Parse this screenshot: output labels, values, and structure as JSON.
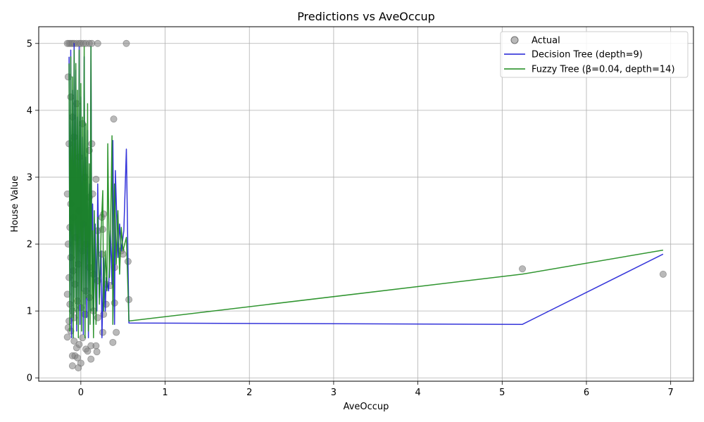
{
  "chart_data": {
    "type": "line",
    "title": "Predictions vs AveOccup",
    "xlabel": "AveOccup",
    "ylabel": "House Value",
    "xlim": [
      -0.5,
      7.27
    ],
    "ylim": [
      -0.05,
      5.25
    ],
    "xticks": [
      0,
      1,
      2,
      3,
      4,
      5,
      6,
      7
    ],
    "yticks": [
      0,
      1,
      2,
      3,
      4,
      5
    ],
    "grid": true,
    "legend_position": "top-right",
    "colors": {
      "actual": "#808080",
      "tree": "#1f1fd6",
      "fuzzy": "#1a8a1a",
      "grid": "#b0b0b0"
    },
    "series": [
      {
        "name": "Actual",
        "kind": "scatter",
        "points": [
          [
            -0.16,
            5.0
          ],
          [
            -0.14,
            5.0
          ],
          [
            -0.12,
            5.0
          ],
          [
            -0.1,
            5.0
          ],
          [
            -0.08,
            5.0
          ],
          [
            -0.05,
            5.0
          ],
          [
            -0.02,
            5.0
          ],
          [
            0.0,
            5.0
          ],
          [
            0.03,
            5.0
          ],
          [
            0.06,
            5.0
          ],
          [
            0.1,
            5.0
          ],
          [
            0.13,
            5.0
          ],
          [
            0.2,
            5.0
          ],
          [
            0.54,
            5.0
          ],
          [
            -0.15,
            4.5
          ],
          [
            -0.12,
            4.2
          ],
          [
            -0.1,
            3.9
          ],
          [
            -0.14,
            3.5
          ],
          [
            -0.08,
            3.6
          ],
          [
            -0.05,
            4.1
          ],
          [
            -0.02,
            3.3
          ],
          [
            0.02,
            3.8
          ],
          [
            0.05,
            3.0
          ],
          [
            0.1,
            3.4
          ],
          [
            0.13,
            3.5
          ],
          [
            0.39,
            3.87
          ],
          [
            -0.16,
            2.75
          ],
          [
            -0.12,
            2.6
          ],
          [
            -0.09,
            2.4
          ],
          [
            -0.13,
            2.25
          ],
          [
            -0.06,
            2.1
          ],
          [
            -0.02,
            2.5
          ],
          [
            0.03,
            2.3
          ],
          [
            0.06,
            2.0
          ],
          [
            0.1,
            2.7
          ],
          [
            0.14,
            2.75
          ],
          [
            0.18,
            2.97
          ],
          [
            0.25,
            2.4
          ],
          [
            0.27,
            2.45
          ],
          [
            0.2,
            2.2
          ],
          [
            0.26,
            2.22
          ],
          [
            -0.15,
            2.0
          ],
          [
            -0.12,
            1.8
          ],
          [
            -0.09,
            1.6
          ],
          [
            -0.14,
            1.5
          ],
          [
            -0.07,
            1.4
          ],
          [
            -0.03,
            1.7
          ],
          [
            0.02,
            1.9
          ],
          [
            0.06,
            1.3
          ],
          [
            0.1,
            1.65
          ],
          [
            0.15,
            1.55
          ],
          [
            0.2,
            1.45
          ],
          [
            0.25,
            1.85
          ],
          [
            0.3,
            1.4
          ],
          [
            0.35,
            1.38
          ],
          [
            0.4,
            1.65
          ],
          [
            0.48,
            1.9
          ],
          [
            0.5,
            1.85
          ],
          [
            0.56,
            1.74
          ],
          [
            -0.16,
            1.25
          ],
          [
            -0.13,
            1.1
          ],
          [
            -0.1,
            1.0
          ],
          [
            -0.14,
            0.85
          ],
          [
            -0.08,
            0.9
          ],
          [
            -0.04,
            1.15
          ],
          [
            0.0,
            1.05
          ],
          [
            0.05,
            0.95
          ],
          [
            0.1,
            1.2
          ],
          [
            0.15,
            1.0
          ],
          [
            0.2,
            0.9
          ],
          [
            0.27,
            0.95
          ],
          [
            0.3,
            1.1
          ],
          [
            0.4,
            1.12
          ],
          [
            0.57,
            1.17
          ],
          [
            -0.15,
            0.75
          ],
          [
            -0.12,
            0.7
          ],
          [
            -0.16,
            0.61
          ],
          [
            -0.08,
            0.55
          ],
          [
            -0.05,
            0.45
          ],
          [
            -0.02,
            0.5
          ],
          [
            0.02,
            0.6
          ],
          [
            0.06,
            0.43
          ],
          [
            0.08,
            0.4
          ],
          [
            0.12,
            0.48
          ],
          [
            0.18,
            0.48
          ],
          [
            0.19,
            0.39
          ],
          [
            0.26,
            0.68
          ],
          [
            0.42,
            0.68
          ],
          [
            0.38,
            0.53
          ],
          [
            -0.1,
            0.33
          ],
          [
            -0.07,
            0.33
          ],
          [
            -0.04,
            0.3
          ],
          [
            0.0,
            0.22
          ],
          [
            0.12,
            0.28
          ],
          [
            -0.1,
            0.18
          ],
          [
            -0.03,
            0.15
          ],
          [
            5.24,
            1.63
          ],
          [
            6.91,
            1.55
          ]
        ]
      },
      {
        "name": "Decision Tree (depth=9)",
        "kind": "line",
        "points": [
          [
            -0.14,
            4.8
          ],
          [
            -0.13,
            0.8
          ],
          [
            -0.12,
            4.9
          ],
          [
            -0.11,
            0.6
          ],
          [
            -0.1,
            4.3
          ],
          [
            -0.09,
            0.9
          ],
          [
            -0.08,
            5.0
          ],
          [
            -0.07,
            1.2
          ],
          [
            -0.06,
            4.6
          ],
          [
            -0.05,
            0.7
          ],
          [
            -0.04,
            3.9
          ],
          [
            -0.03,
            1.0
          ],
          [
            -0.02,
            4.95
          ],
          [
            -0.01,
            0.8
          ],
          [
            0.0,
            4.2
          ],
          [
            0.01,
            1.3
          ],
          [
            0.02,
            3.6
          ],
          [
            0.03,
            0.65
          ],
          [
            0.04,
            4.8
          ],
          [
            0.05,
            1.1
          ],
          [
            0.06,
            3.3
          ],
          [
            0.07,
            0.9
          ],
          [
            0.08,
            3.7
          ],
          [
            0.09,
            0.6
          ],
          [
            0.1,
            2.9
          ],
          [
            0.11,
            1.0
          ],
          [
            0.12,
            4.95
          ],
          [
            0.13,
            1.5
          ],
          [
            0.14,
            2.6
          ],
          [
            0.15,
            0.8
          ],
          [
            0.17,
            2.3
          ],
          [
            0.19,
            1.0
          ],
          [
            0.2,
            2.9
          ],
          [
            0.22,
            1.2
          ],
          [
            0.24,
            1.9
          ],
          [
            0.25,
            0.6
          ],
          [
            0.27,
            1.8
          ],
          [
            0.29,
            1.0
          ],
          [
            0.3,
            1.5
          ],
          [
            0.33,
            1.3
          ],
          [
            0.35,
            2.2
          ],
          [
            0.37,
            1.4
          ],
          [
            0.38,
            3.55
          ],
          [
            0.4,
            0.8
          ],
          [
            0.41,
            3.1
          ],
          [
            0.44,
            1.8
          ],
          [
            0.46,
            2.3
          ],
          [
            0.48,
            1.9
          ],
          [
            0.51,
            2.2
          ],
          [
            0.54,
            3.42
          ],
          [
            0.57,
            0.82
          ],
          [
            5.24,
            0.8
          ],
          [
            6.91,
            1.85
          ]
        ]
      },
      {
        "name": "Fuzzy Tree (β=0.04, depth=14)",
        "kind": "line",
        "points": [
          [
            -0.14,
            4.7
          ],
          [
            -0.13,
            0.7
          ],
          [
            -0.12,
            4.8
          ],
          [
            -0.11,
            0.9
          ],
          [
            -0.1,
            4.5
          ],
          [
            -0.09,
            0.6
          ],
          [
            -0.08,
            4.9
          ],
          [
            -0.07,
            1.0
          ],
          [
            -0.06,
            4.7
          ],
          [
            -0.05,
            0.8
          ],
          [
            -0.04,
            4.3
          ],
          [
            -0.03,
            0.6
          ],
          [
            -0.02,
            4.9
          ],
          [
            -0.01,
            1.1
          ],
          [
            0.0,
            4.4
          ],
          [
            0.01,
            0.7
          ],
          [
            0.02,
            3.9
          ],
          [
            0.03,
            1.0
          ],
          [
            0.04,
            4.95
          ],
          [
            0.05,
            0.6
          ],
          [
            0.06,
            3.8
          ],
          [
            0.07,
            1.2
          ],
          [
            0.08,
            4.1
          ],
          [
            0.09,
            0.7
          ],
          [
            0.1,
            3.2
          ],
          [
            0.11,
            0.8
          ],
          [
            0.12,
            4.95
          ],
          [
            0.13,
            1.0
          ],
          [
            0.14,
            2.2
          ],
          [
            0.15,
            0.6
          ],
          [
            0.16,
            2.5
          ],
          [
            0.18,
            0.8
          ],
          [
            0.2,
            2.4
          ],
          [
            0.22,
            1.1
          ],
          [
            0.24,
            2.2
          ],
          [
            0.26,
            2.8
          ],
          [
            0.27,
            1.0
          ],
          [
            0.29,
            1.9
          ],
          [
            0.31,
            1.3
          ],
          [
            0.32,
            3.5
          ],
          [
            0.34,
            1.5
          ],
          [
            0.36,
            2.8
          ],
          [
            0.37,
            3.62
          ],
          [
            0.38,
            0.8
          ],
          [
            0.4,
            2.9
          ],
          [
            0.42,
            1.7
          ],
          [
            0.44,
            2.5
          ],
          [
            0.46,
            1.55
          ],
          [
            0.48,
            2.25
          ],
          [
            0.5,
            1.9
          ],
          [
            0.54,
            2.1
          ],
          [
            0.57,
            0.85
          ],
          [
            5.24,
            1.55
          ],
          [
            6.91,
            1.91
          ]
        ]
      }
    ]
  }
}
